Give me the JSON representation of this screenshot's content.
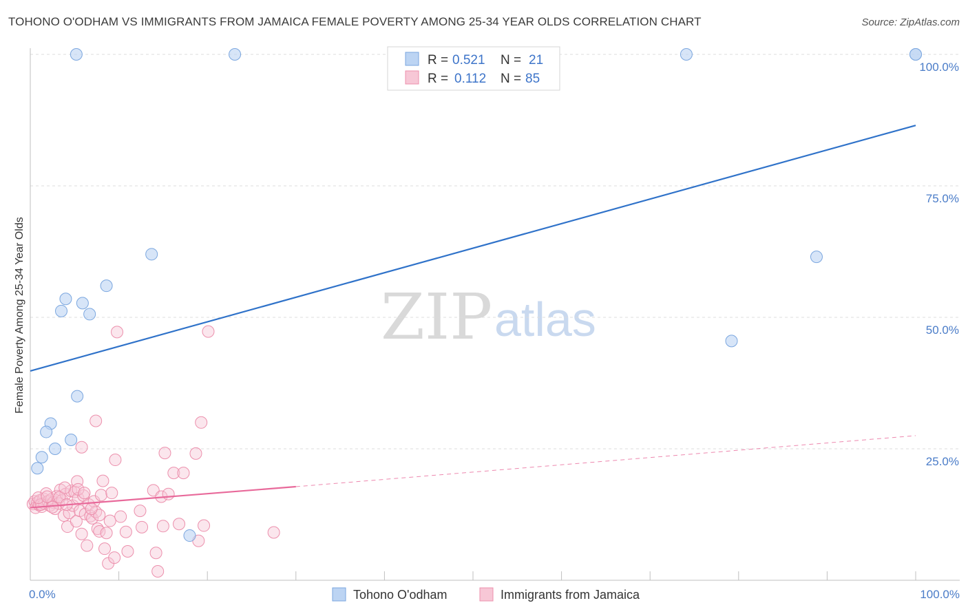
{
  "title": "TOHONO O'ODHAM VS IMMIGRANTS FROM JAMAICA FEMALE POVERTY AMONG 25-34 YEAR OLDS CORRELATION CHART",
  "source": "Source: ZipAtlas.com",
  "watermark": {
    "zip": "ZIP",
    "atlas": "atlas"
  },
  "colors": {
    "blue_fill": "#bcd4f3",
    "blue_stroke": "#7aa6df",
    "blue_line": "#2f72c9",
    "pink_fill": "#f7c7d6",
    "pink_stroke": "#ec8fac",
    "pink_line": "#e8699a",
    "grid": "#dcdcdc",
    "tick_label": "#4a7cc8"
  },
  "legend": {
    "rows": [
      {
        "r_label": "R = ",
        "r_value": "0.521",
        "n_label": "N = ",
        "n_value": "21"
      },
      {
        "r_label": "R = ",
        "r_value": "0.112",
        "n_label": "N = ",
        "n_value": "85"
      }
    ]
  },
  "chart_data": {
    "type": "scatter",
    "title": "TOHONO O'ODHAM VS IMMIGRANTS FROM JAMAICA FEMALE POVERTY AMONG 25-34 YEAR OLDS CORRELATION CHART",
    "xlabel": "",
    "ylabel": "Female Poverty Among 25-34 Year Olds",
    "xlim": [
      0,
      100
    ],
    "ylim": [
      0,
      100
    ],
    "x_ticks": [
      "0.0%",
      "100.0%"
    ],
    "y_ticks": [
      {
        "value": 100,
        "label": "100.0%"
      },
      {
        "value": 75,
        "label": "75.0%"
      },
      {
        "value": 50,
        "label": "50.0%"
      },
      {
        "value": 25,
        "label": "25.0%"
      }
    ],
    "series": [
      {
        "name": "Tohono O'odham",
        "color": "#7aa6df",
        "points": [
          [
            5.2,
            100
          ],
          [
            23.1,
            100
          ],
          [
            74.1,
            100
          ],
          [
            100,
            100
          ],
          [
            13.7,
            62.0
          ],
          [
            88.8,
            61.5
          ],
          [
            8.6,
            56.0
          ],
          [
            4.0,
            53.5
          ],
          [
            5.9,
            52.7
          ],
          [
            3.5,
            51.2
          ],
          [
            6.7,
            50.6
          ],
          [
            79.2,
            45.5
          ],
          [
            5.3,
            35.0
          ],
          [
            2.3,
            29.8
          ],
          [
            1.8,
            28.2
          ],
          [
            4.6,
            26.7
          ],
          [
            2.8,
            25.0
          ],
          [
            1.3,
            23.4
          ],
          [
            0.8,
            21.3
          ],
          [
            18.0,
            8.5
          ],
          [
            100,
            100
          ]
        ],
        "trend": {
          "x0": 0,
          "y0": 39.8,
          "x1": 100,
          "y1": 86.5
        }
      },
      {
        "name": "Immigrants from Jamaica",
        "color": "#ec8fac",
        "points": [
          [
            0.3,
            14.5
          ],
          [
            0.5,
            15.0
          ],
          [
            0.6,
            13.8
          ],
          [
            0.8,
            14.8
          ],
          [
            1.0,
            14.3
          ],
          [
            1.1,
            15.2
          ],
          [
            1.3,
            14.0
          ],
          [
            1.5,
            15.5
          ],
          [
            1.6,
            14.6
          ],
          [
            1.8,
            16.5
          ],
          [
            2.0,
            15.0
          ],
          [
            2.2,
            14.2
          ],
          [
            2.4,
            15.4
          ],
          [
            2.6,
            14.8
          ],
          [
            2.8,
            13.6
          ],
          [
            3.0,
            16.0
          ],
          [
            3.2,
            14.6
          ],
          [
            3.4,
            17.2
          ],
          [
            3.6,
            15.2
          ],
          [
            3.8,
            12.3
          ],
          [
            4.0,
            16.4
          ],
          [
            4.2,
            10.2
          ],
          [
            4.4,
            12.8
          ],
          [
            4.6,
            17.0
          ],
          [
            4.8,
            14.2
          ],
          [
            5.0,
            16.8
          ],
          [
            5.2,
            11.2
          ],
          [
            5.4,
            15.6
          ],
          [
            5.6,
            13.2
          ],
          [
            5.8,
            8.8
          ],
          [
            6.0,
            16.1
          ],
          [
            6.2,
            12.6
          ],
          [
            6.4,
            6.6
          ],
          [
            6.6,
            14.4
          ],
          [
            6.8,
            12.2
          ],
          [
            7.0,
            11.8
          ],
          [
            7.2,
            15.0
          ],
          [
            7.4,
            13.0
          ],
          [
            7.6,
            9.8
          ],
          [
            7.8,
            12.4
          ],
          [
            5.3,
            18.8
          ],
          [
            5.4,
            17.3
          ],
          [
            6.1,
            16.6
          ],
          [
            5.8,
            25.3
          ],
          [
            7.4,
            30.3
          ],
          [
            7.8,
            9.3
          ],
          [
            8.0,
            16.2
          ],
          [
            8.2,
            18.9
          ],
          [
            8.4,
            6.0
          ],
          [
            8.6,
            9.0
          ],
          [
            8.8,
            3.2
          ],
          [
            9.0,
            11.3
          ],
          [
            9.2,
            16.6
          ],
          [
            9.5,
            4.3
          ],
          [
            9.6,
            22.9
          ],
          [
            9.8,
            47.2
          ],
          [
            10.2,
            12.1
          ],
          [
            10.8,
            9.2
          ],
          [
            11.0,
            5.5
          ],
          [
            12.4,
            13.2
          ],
          [
            12.6,
            10.1
          ],
          [
            13.9,
            17.1
          ],
          [
            14.2,
            5.2
          ],
          [
            14.4,
            1.7
          ],
          [
            14.8,
            15.9
          ],
          [
            15.0,
            10.3
          ],
          [
            15.2,
            24.2
          ],
          [
            15.6,
            16.4
          ],
          [
            16.2,
            20.4
          ],
          [
            16.8,
            10.7
          ],
          [
            17.3,
            20.4
          ],
          [
            18.7,
            24.1
          ],
          [
            19.0,
            7.5
          ],
          [
            19.3,
            30.0
          ],
          [
            19.6,
            10.4
          ],
          [
            20.1,
            47.3
          ],
          [
            27.5,
            9.1
          ],
          [
            1.2,
            14.4
          ],
          [
            2.5,
            13.9
          ],
          [
            3.3,
            15.8
          ],
          [
            4.1,
            14.4
          ],
          [
            0.9,
            15.7
          ],
          [
            1.9,
            15.9
          ],
          [
            6.9,
            13.6
          ],
          [
            3.9,
            17.6
          ]
        ],
        "trend": {
          "x0": 0,
          "y0": 13.8,
          "x1": 30,
          "y1": 17.8
        },
        "trend_dashed": {
          "x0": 30,
          "y0": 17.8,
          "x1": 100,
          "y1": 27.5
        }
      }
    ]
  },
  "bottom_legend": [
    "Tohono O'odham",
    "Immigrants from Jamaica"
  ]
}
